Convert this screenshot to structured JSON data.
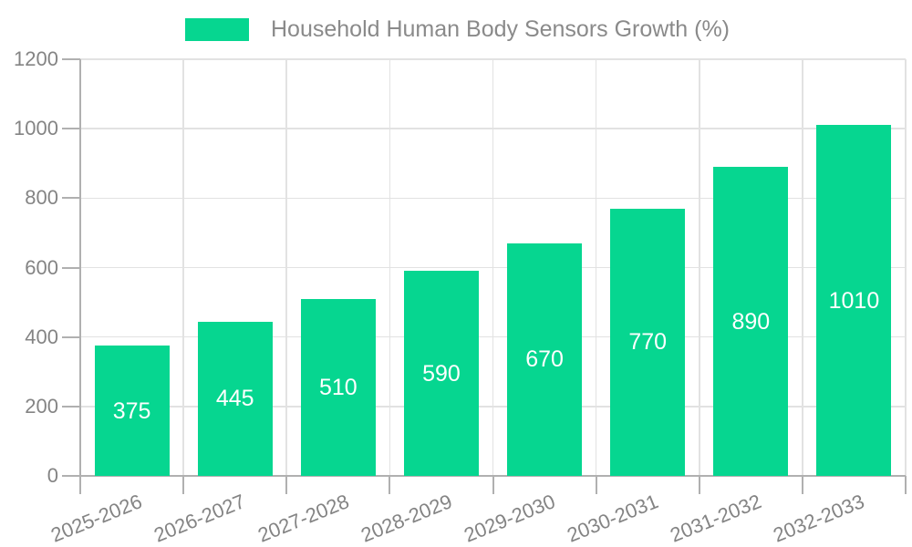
{
  "legend": {
    "label": "Household Human Body Sensors Growth (%)"
  },
  "chart_data": {
    "type": "bar",
    "title": "",
    "xlabel": "",
    "ylabel": "",
    "categories": [
      "2025-2026",
      "2026-2027",
      "2027-2028",
      "2028-2029",
      "2029-2030",
      "2030-2031",
      "2031-2032",
      "2032-2033"
    ],
    "values": [
      375,
      445,
      510,
      590,
      670,
      770,
      890,
      1010
    ],
    "series_name": "Household Human Body Sensors Growth (%)",
    "ylim": [
      0,
      1200
    ],
    "yticks": [
      0,
      200,
      400,
      600,
      800,
      1000,
      1200
    ],
    "grid": true,
    "legend_position": "top",
    "value_labels": "inside-center",
    "colors": {
      "bar": "#06D690",
      "grid": "#e2e2e2",
      "axis": "#b0b0b0",
      "tick_text": "#848484",
      "legend_text": "#8a8a8a",
      "value_text": "#ffffff",
      "background": "#ffffff"
    }
  }
}
